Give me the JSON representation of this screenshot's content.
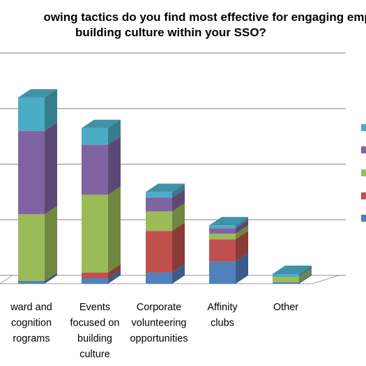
{
  "chart_data": {
    "type": "bar",
    "stacked": true,
    "three_d": true,
    "title_lines": [
      "owing tactics do you find most effective for engaging empl",
      "building culture within your SSO?"
    ],
    "categories": [
      [
        "ward and",
        "cognition",
        "rograms"
      ],
      [
        "Events",
        "focused on",
        "building",
        "culture"
      ],
      [
        "Corporate",
        "volunteering",
        "opportunities"
      ],
      [
        "Affinity",
        "clubs"
      ],
      [
        "Other"
      ]
    ],
    "series": [
      {
        "color": "#4f81bd",
        "values": [
          1,
          2,
          4,
          8,
          0.5
        ]
      },
      {
        "color": "#c0504d",
        "values": [
          0,
          2,
          15,
          8,
          0
        ]
      },
      {
        "color": "#9bbb59",
        "values": [
          24,
          28,
          7,
          2,
          2
        ]
      },
      {
        "color": "#8064a2",
        "values": [
          30,
          18,
          5,
          2,
          0
        ]
      },
      {
        "color": "#4bacc6",
        "values": [
          12,
          6,
          2,
          1,
          1
        ]
      }
    ],
    "ylim": [
      0,
      80
    ],
    "grid": true,
    "legend_position": "right"
  }
}
